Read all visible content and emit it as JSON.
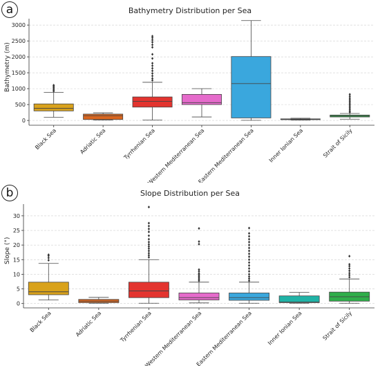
{
  "chart_data": [
    {
      "panel_label": "a",
      "type": "box",
      "title": "Bathymetry Distribution per Sea",
      "xlabel": "",
      "ylabel": "Bathymetry (m)",
      "ylim": [
        -150,
        3200
      ],
      "yticks": [
        0,
        500,
        1000,
        1500,
        2000,
        2500,
        3000
      ],
      "grid": "horizontal dashed",
      "categories": [
        "Black Sea",
        "Adriatic Sea",
        "Tyrrhenian Sea",
        "Western Mediterranean Sea",
        "Eastern Mediterranean Sea",
        "Inner Ionian Sea",
        "Strait of Sicily"
      ],
      "colors": [
        "#d9a21b",
        "#d9661f",
        "#e3342f",
        "#e56bcb",
        "#3aa7dd",
        "#20b3a6",
        "#2fae4a"
      ],
      "boxes": [
        {
          "whisker_low": 100,
          "q1": 300,
          "median": 380,
          "q3": 520,
          "whisker_high": 880,
          "outliers": [
            920,
            960,
            1000,
            1040,
            1080,
            1110
          ]
        },
        {
          "whisker_low": 10,
          "q1": 30,
          "median": 150,
          "q3": 200,
          "whisker_high": 240,
          "outliers": []
        },
        {
          "whisker_low": 10,
          "q1": 420,
          "median": 600,
          "q3": 740,
          "whisker_high": 1200,
          "outliers": [
            1260,
            1320,
            1400,
            1480,
            1560,
            1640,
            1720,
            1800,
            1950,
            2080,
            2300,
            2380,
            2460,
            2530,
            2600,
            2650
          ]
        },
        {
          "whisker_low": 110,
          "q1": 500,
          "median": 560,
          "q3": 820,
          "whisker_high": 1000,
          "outliers": []
        },
        {
          "whisker_low": 5,
          "q1": 80,
          "median": 1160,
          "q3": 2010,
          "whisker_high": 3140,
          "outliers": []
        },
        {
          "whisker_low": 10,
          "q1": 25,
          "median": 35,
          "q3": 50,
          "whisker_high": 70,
          "outliers": []
        },
        {
          "whisker_low": 40,
          "q1": 110,
          "median": 140,
          "q3": 170,
          "whisker_high": 220,
          "outliers": [
            260,
            300,
            350,
            400,
            450,
            500,
            550,
            600,
            650,
            700,
            760,
            820
          ]
        }
      ]
    },
    {
      "panel_label": "b",
      "type": "box",
      "title": "Slope Distribution per Sea",
      "xlabel": "",
      "ylabel": "Slope (°)",
      "ylim": [
        -1.5,
        34
      ],
      "yticks": [
        0,
        5,
        10,
        15,
        20,
        25,
        30
      ],
      "grid": "horizontal dashed",
      "categories": [
        "Black Sea",
        "Adriatic Sea",
        "Tyrrhenian Sea",
        "Western Mediterranean Sea",
        "Eastern Mediterranean Sea",
        "Inner Ionian Sea",
        "Strait of Sicily"
      ],
      "colors": [
        "#d9a21b",
        "#d9661f",
        "#e3342f",
        "#e56bcb",
        "#3aa7dd",
        "#20b3a6",
        "#2fae4a"
      ],
      "boxes": [
        {
          "whisker_low": 1.2,
          "q1": 3.0,
          "median": 4.0,
          "q3": 7.3,
          "whisker_high": 13.7,
          "outliers": [
            14.8,
            15.6,
            16.3,
            16.7
          ]
        },
        {
          "whisker_low": 0.1,
          "q1": 0.3,
          "median": 0.8,
          "q3": 1.4,
          "whisker_high": 2.1,
          "outliers": []
        },
        {
          "whisker_low": 0.1,
          "q1": 2.0,
          "median": 4.3,
          "q3": 7.3,
          "whisker_high": 15.0,
          "outliers": [
            15.8,
            16.5,
            17.2,
            18.0,
            18.8,
            19.5,
            20.2,
            21.0,
            22.0,
            23.2,
            24.5,
            25.5,
            26.5,
            27.5,
            33.0
          ]
        },
        {
          "whisker_low": 0.2,
          "q1": 1.2,
          "median": 2.0,
          "q3": 3.6,
          "whisker_high": 7.3,
          "outliers": [
            7.8,
            8.3,
            8.8,
            9.3,
            9.8,
            10.3,
            11.0,
            11.6,
            20.3,
            21.2,
            25.7
          ]
        },
        {
          "whisker_low": 0.1,
          "q1": 1.1,
          "median": 2.0,
          "q3": 3.6,
          "whisker_high": 7.3,
          "outliers": [
            7.8,
            8.5,
            9.2,
            10.0,
            11.0,
            12.0,
            13.0,
            14.0,
            15.0,
            16.0,
            17.0,
            18.0,
            19.0,
            20.0,
            21.0,
            22.0,
            23.0,
            24.0,
            25.8
          ]
        },
        {
          "whisker_low": 0.1,
          "q1": 0.3,
          "median": 0.5,
          "q3": 2.6,
          "whisker_high": 3.8,
          "outliers": []
        },
        {
          "whisker_low": 0.1,
          "q1": 0.8,
          "median": 2.3,
          "q3": 3.9,
          "whisker_high": 8.4,
          "outliers": [
            9.0,
            9.7,
            10.4,
            11.2,
            12.0,
            12.8,
            13.4,
            16.2
          ]
        }
      ]
    }
  ]
}
